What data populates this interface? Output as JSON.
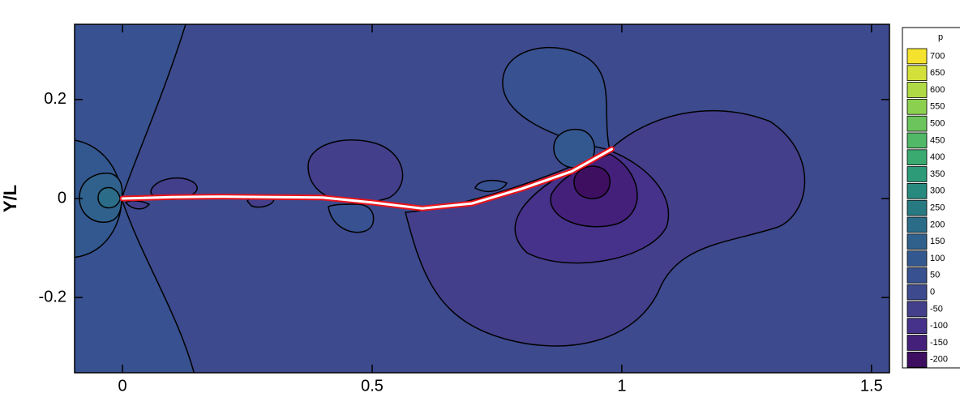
{
  "chart_data": {
    "type": "contour",
    "ylabel": "Y/L",
    "xlim": [
      -0.096,
      1.536
    ],
    "ylim": [
      -0.352,
      0.352
    ],
    "xticks": [
      0,
      0.5,
      1,
      1.5
    ],
    "yticks": [
      -0.2,
      0,
      0.2
    ],
    "colorbar": {
      "title": "p",
      "levels": [
        700,
        650,
        600,
        550,
        500,
        450,
        400,
        350,
        300,
        250,
        200,
        150,
        100,
        50,
        0,
        -50,
        -100,
        -150,
        -200
      ],
      "colors": [
        "#f4e22e",
        "#d4e03a",
        "#b0da45",
        "#8cd050",
        "#6cc45c",
        "#50b866",
        "#3aaa70",
        "#2d9a78",
        "#28897e",
        "#287a82",
        "#2b6c88",
        "#2f618c",
        "#33588f",
        "#385190",
        "#3d4a8d",
        "#433f8b",
        "#46328a",
        "#44207a",
        "#3e0f60"
      ]
    },
    "filament": {
      "color": "#e8141c",
      "x": [
        0,
        0.1,
        0.2,
        0.3,
        0.4,
        0.5,
        0.6,
        0.7,
        0.8,
        0.9,
        0.98
      ],
      "y": [
        0,
        0.003,
        0.004,
        0.003,
        0.002,
        -0.008,
        -0.02,
        -0.01,
        0.02,
        0.055,
        0.1
      ]
    }
  }
}
